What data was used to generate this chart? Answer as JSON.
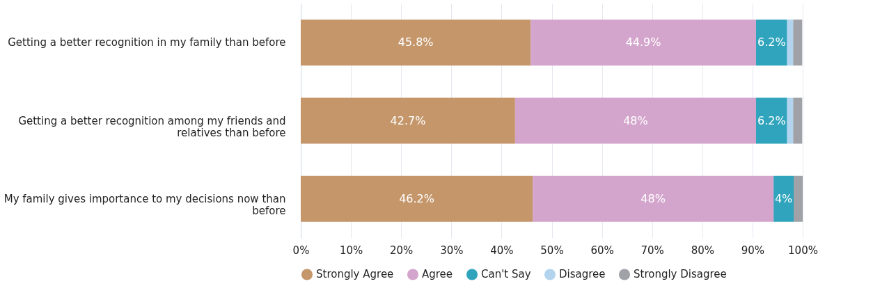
{
  "chart_data": {
    "type": "bar",
    "orientation": "horizontal",
    "stacked": true,
    "categories": [
      "Getting a better recognition in my family than before",
      "Getting a better recognition among my friends and relatives than before",
      "My family gives importance to my decisions now than before"
    ],
    "series": [
      {
        "name": "Strongly Agree",
        "color": "#c4966a",
        "values": [
          45.8,
          42.7,
          46.2
        ],
        "value_labels": [
          "45.8%",
          "42.7%",
          "46.2%"
        ]
      },
      {
        "name": "Agree",
        "color": "#d4a5cc",
        "values": [
          44.9,
          48,
          48
        ],
        "value_labels": [
          "44.9%",
          "48%",
          "48%"
        ]
      },
      {
        "name": "Can't Say",
        "color": "#2fa4bc",
        "values": [
          6.2,
          6.2,
          4
        ],
        "value_labels": [
          "6.2%",
          "6.2%",
          "4%"
        ]
      },
      {
        "name": "Disagree",
        "color": "#b2d4ef",
        "values": [
          1.2,
          1.2,
          0
        ],
        "value_labels": [
          null,
          null,
          null
        ]
      },
      {
        "name": "Strongly Disagree",
        "color": "#a0a2a8",
        "values": [
          1.8,
          1.8,
          1.8
        ],
        "value_labels": [
          null,
          null,
          null
        ]
      }
    ],
    "xlim": [
      0,
      100
    ],
    "xticks": [
      {
        "value": 0,
        "label": "0%"
      },
      {
        "value": 10,
        "label": "10%"
      },
      {
        "value": 20,
        "label": "20%"
      },
      {
        "value": 30,
        "label": "30%"
      },
      {
        "value": 40,
        "label": "40%"
      },
      {
        "value": 50,
        "label": "50%"
      },
      {
        "value": 60,
        "label": "60%"
      },
      {
        "value": 70,
        "label": "70%"
      },
      {
        "value": 80,
        "label": "80%"
      },
      {
        "value": 90,
        "label": "90%"
      },
      {
        "value": 100,
        "label": "100%"
      }
    ],
    "grid": "x",
    "legend": "bottom"
  }
}
